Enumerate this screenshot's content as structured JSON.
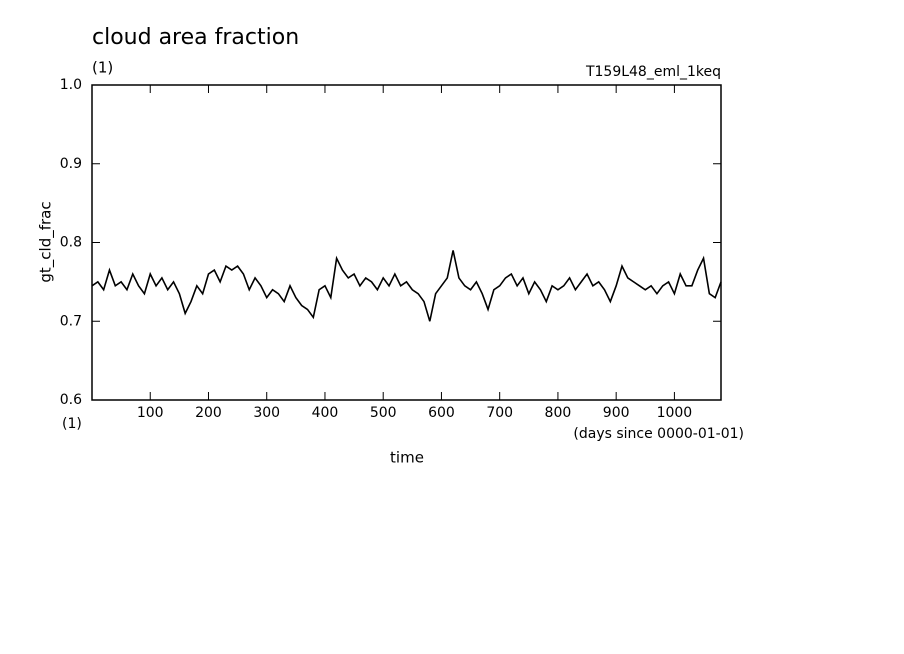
{
  "chart_data": {
    "type": "line",
    "title": "cloud area fraction",
    "title_unit": "(1)",
    "subtitle_right": "T159L48_eml_1keq",
    "ylabel": "gt_cld_frac",
    "x_unit": "(1)",
    "x_note": "(days since 0000-01-01)",
    "xlabel": "time",
    "xlim": [
      0,
      1080
    ],
    "ylim": [
      0.6,
      1
    ],
    "xticks": [
      100,
      200,
      300,
      400,
      500,
      600,
      700,
      800,
      900,
      1000
    ],
    "yticks": [
      0.6,
      0.7,
      0.8,
      0.9,
      {
        "value": 1,
        "label": "1.0"
      }
    ],
    "color": "#000000",
    "x": [
      0,
      10,
      20,
      30,
      40,
      50,
      60,
      70,
      80,
      90,
      100,
      110,
      120,
      130,
      140,
      150,
      160,
      170,
      180,
      190,
      200,
      210,
      220,
      230,
      240,
      250,
      260,
      270,
      280,
      290,
      300,
      310,
      320,
      330,
      340,
      350,
      360,
      370,
      380,
      390,
      400,
      410,
      420,
      430,
      440,
      450,
      460,
      470,
      480,
      490,
      500,
      510,
      520,
      530,
      540,
      550,
      560,
      570,
      580,
      590,
      600,
      610,
      620,
      630,
      640,
      650,
      660,
      670,
      680,
      690,
      700,
      710,
      720,
      730,
      740,
      750,
      760,
      770,
      780,
      790,
      800,
      810,
      820,
      830,
      840,
      850,
      860,
      870,
      880,
      890,
      900,
      910,
      920,
      930,
      940,
      950,
      960,
      970,
      980,
      990,
      1000,
      1010,
      1020,
      1030,
      1040,
      1050,
      1060,
      1070,
      1080
    ],
    "values": [
      0.745,
      0.75,
      0.74,
      0.765,
      0.745,
      0.75,
      0.74,
      0.76,
      0.745,
      0.735,
      0.76,
      0.745,
      0.755,
      0.74,
      0.75,
      0.735,
      0.71,
      0.725,
      0.745,
      0.735,
      0.76,
      0.765,
      0.75,
      0.77,
      0.765,
      0.77,
      0.76,
      0.74,
      0.755,
      0.745,
      0.73,
      0.74,
      0.735,
      0.725,
      0.745,
      0.73,
      0.72,
      0.715,
      0.705,
      0.74,
      0.745,
      0.73,
      0.78,
      0.765,
      0.755,
      0.76,
      0.745,
      0.755,
      0.75,
      0.74,
      0.755,
      0.745,
      0.76,
      0.745,
      0.75,
      0.74,
      0.735,
      0.725,
      0.7,
      0.735,
      0.745,
      0.755,
      0.79,
      0.755,
      0.745,
      0.74,
      0.75,
      0.735,
      0.715,
      0.74,
      0.745,
      0.755,
      0.76,
      0.745,
      0.755,
      0.735,
      0.75,
      0.74,
      0.725,
      0.745,
      0.74,
      0.745,
      0.755,
      0.74,
      0.75,
      0.76,
      0.745,
      0.75,
      0.74,
      0.725,
      0.745,
      0.77,
      0.755,
      0.75,
      0.745,
      0.74,
      0.745,
      0.735,
      0.745,
      0.75,
      0.735,
      0.76,
      0.745,
      0.745,
      0.765,
      0.78,
      0.735,
      0.73,
      0.75
    ]
  }
}
